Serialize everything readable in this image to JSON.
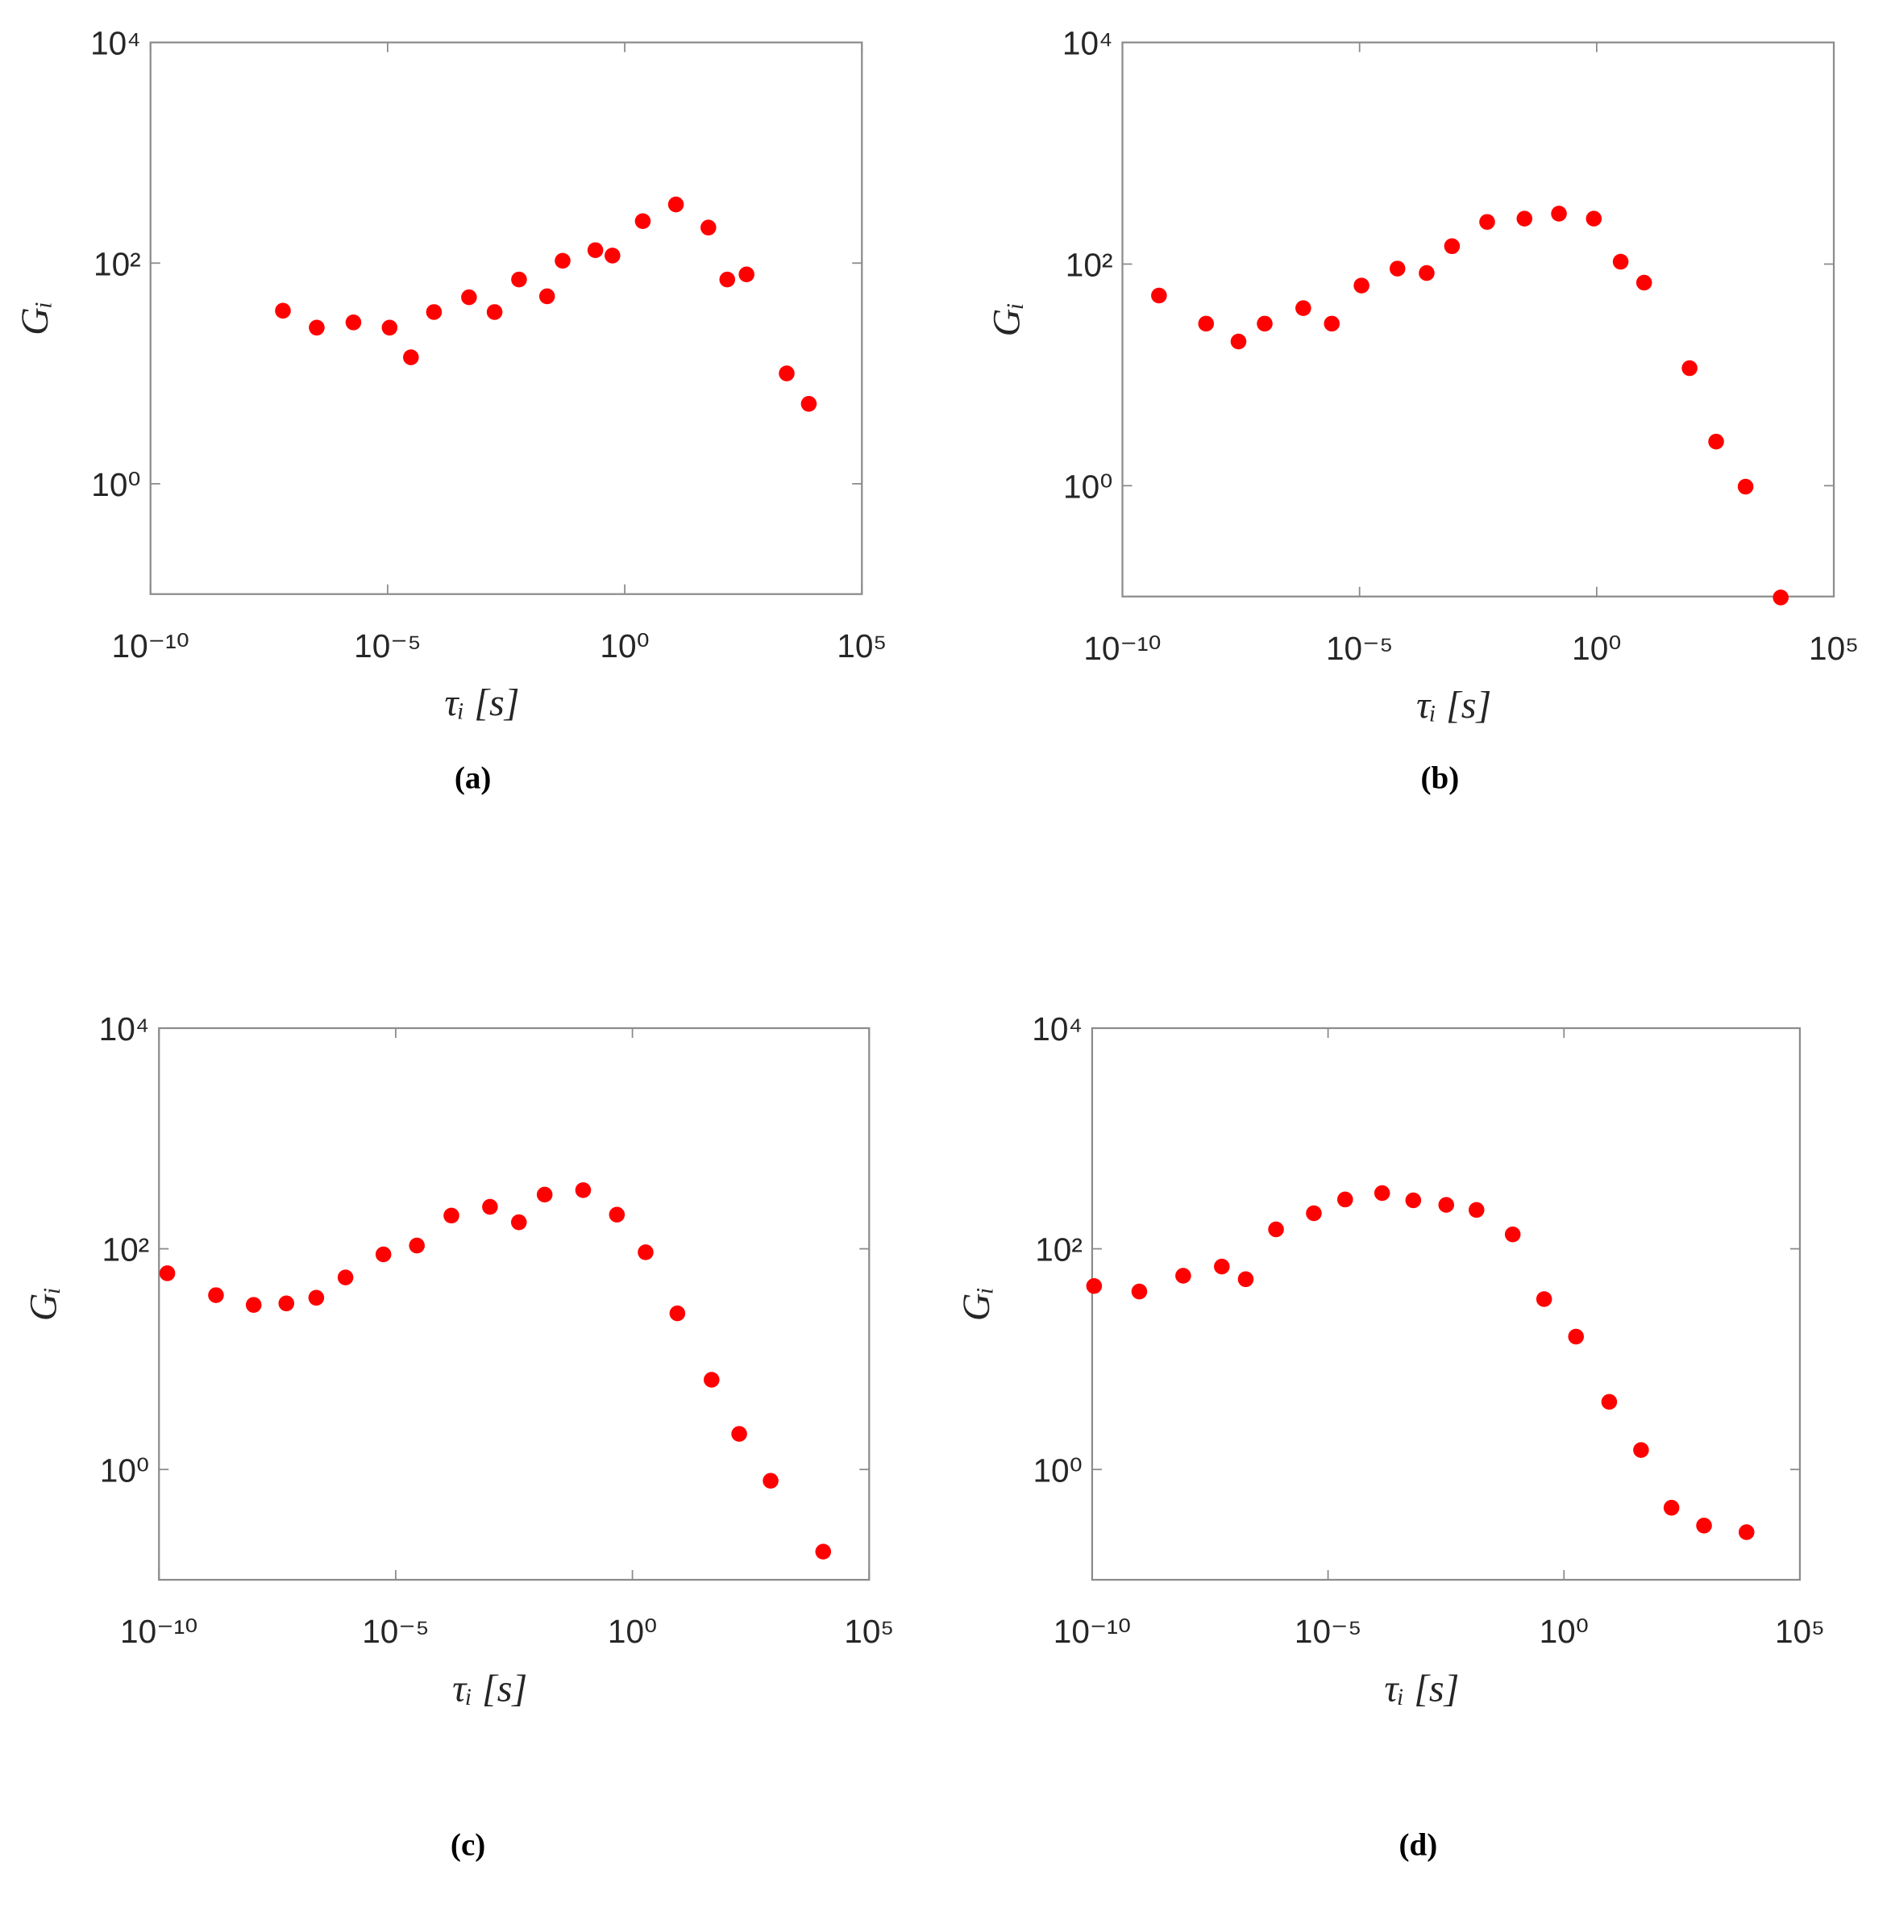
{
  "chart_data": [
    {
      "type": "scatter",
      "caption": "(a)",
      "xlabel": "τᵢ [s]",
      "ylabel": "Gᵢ",
      "color": "#ff0000",
      "xscale": "log",
      "yscale": "log",
      "grid": false,
      "xlim": [
        1e-10,
        100000
      ],
      "ylim": [
        0.1,
        10000
      ],
      "xticks": [
        {
          "value": 1e-10,
          "label": "10⁻¹⁰"
        },
        {
          "value": 1e-05,
          "label": "10⁻⁵"
        },
        {
          "value": 1,
          "label": "10⁰"
        },
        {
          "value": 100000,
          "label": "10⁵"
        }
      ],
      "yticks": [
        {
          "value": 1,
          "label": "10⁰"
        },
        {
          "value": 100,
          "label": "10²"
        },
        {
          "value": 10000,
          "label": "10⁴"
        }
      ],
      "x": [
        6.2e-08,
        3.2e-07,
        1.9e-06,
        1.1e-05,
        3.1e-05,
        9.5e-05,
        0.00052,
        0.0018,
        0.0059,
        0.023,
        0.049,
        0.24,
        0.55,
        2.4,
        12,
        58,
        145,
        370,
        2600,
        7600
      ],
      "values": [
        37,
        26,
        29,
        26,
        14,
        36,
        49,
        36,
        71,
        50,
        105,
        131,
        117,
        240,
        340,
        210,
        71,
        79,
        10,
        5.3
      ]
    },
    {
      "type": "scatter",
      "caption": "(b)",
      "xlabel": "τᵢ [s]",
      "ylabel": "Gᵢ",
      "color": "#ff0000",
      "xscale": "log",
      "yscale": "log",
      "grid": false,
      "xlim": [
        1e-10,
        100000
      ],
      "ylim": [
        0.1,
        10000
      ],
      "xticks": [
        {
          "value": 1e-10,
          "label": "10⁻¹⁰"
        },
        {
          "value": 1e-05,
          "label": "10⁻⁵"
        },
        {
          "value": 1,
          "label": "10⁰"
        },
        {
          "value": 100000,
          "label": "10⁵"
        }
      ],
      "yticks": [
        {
          "value": 1,
          "label": "10⁰"
        },
        {
          "value": 100,
          "label": "10²"
        },
        {
          "value": 10000,
          "label": "10⁴"
        }
      ],
      "x": [
        5.9e-10,
        5.8e-09,
        2.8e-08,
        1e-07,
        6.5e-07,
        2.6e-06,
        1.1e-05,
        6.3e-05,
        0.00026,
        0.00089,
        0.0049,
        0.03,
        0.16,
        0.87,
        3.2,
        10,
        91,
        330,
        1380,
        7600
      ],
      "values": [
        52,
        29,
        20,
        29,
        40,
        29,
        64,
        91,
        83,
        145,
        240,
        257,
        285,
        257,
        105,
        68,
        11.5,
        2.5,
        0.98,
        0.098
      ]
    },
    {
      "type": "scatter",
      "caption": "(c)",
      "xlabel": "τᵢ [s]",
      "ylabel": "Gᵢ",
      "color": "#ff0000",
      "xscale": "log",
      "yscale": "log",
      "grid": false,
      "xlim": [
        1e-10,
        100000
      ],
      "ylim": [
        0.1,
        10000
      ],
      "xticks": [
        {
          "value": 1e-10,
          "label": "10⁻¹⁰"
        },
        {
          "value": 1e-05,
          "label": "10⁻⁵"
        },
        {
          "value": 1,
          "label": "10⁰"
        },
        {
          "value": 100000,
          "label": "10⁵"
        }
      ],
      "yticks": [
        {
          "value": 1,
          "label": "10⁰"
        },
        {
          "value": 100,
          "label": "10²"
        },
        {
          "value": 10000,
          "label": "10⁴"
        }
      ],
      "x": [
        1.5e-10,
        1.6e-09,
        1e-08,
        4.9e-08,
        2.1e-07,
        8.7e-07,
        5.5e-06,
        2.8e-05,
        0.00015,
        0.00098,
        0.004,
        0.014,
        0.091,
        0.47,
        1.9,
        8.9,
        47,
        180,
        830,
        10700
      ],
      "values": [
        60,
        38,
        31,
        32,
        36,
        55,
        89,
        107,
        200,
        240,
        174,
        310,
        340,
        204,
        93,
        26,
        6.5,
        2.1,
        0.79,
        0.18
      ]
    },
    {
      "type": "scatter",
      "caption": "(d)",
      "xlabel": "τᵢ [s]",
      "ylabel": "Gᵢ",
      "color": "#ff0000",
      "xscale": "log",
      "yscale": "log",
      "grid": false,
      "xlim": [
        1e-10,
        100000
      ],
      "ylim": [
        0.1,
        10000
      ],
      "xticks": [
        {
          "value": 1e-10,
          "label": "10⁻¹⁰"
        },
        {
          "value": 1e-05,
          "label": "10⁻⁵"
        },
        {
          "value": 1,
          "label": "10⁰"
        },
        {
          "value": 100000,
          "label": "10⁵"
        }
      ],
      "yticks": [
        {
          "value": 1,
          "label": "10⁰"
        },
        {
          "value": 100,
          "label": "10²"
        },
        {
          "value": 10000,
          "label": "10⁴"
        }
      ],
      "x": [
        1.1e-10,
        1e-09,
        8.5e-09,
        5.6e-08,
        1.8e-07,
        7.9e-07,
        5e-06,
        2.3e-05,
        0.00014,
        0.00064,
        0.0032,
        0.014,
        0.082,
        0.38,
        1.8,
        9.1,
        43,
        190,
        930,
        7400
      ],
      "values": [
        46,
        41,
        57,
        69,
        53,
        150,
        210,
        280,
        320,
        275,
        250,
        225,
        135,
        35,
        16,
        4.1,
        1.5,
        0.45,
        0.31,
        0.27
      ]
    }
  ]
}
